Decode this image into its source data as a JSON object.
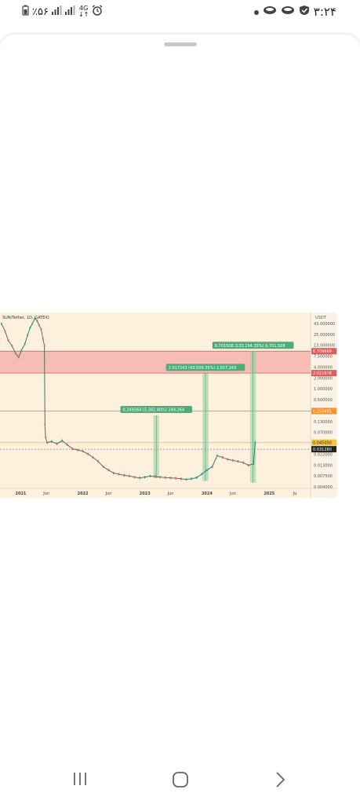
{
  "status_bar": {
    "left_text": "٪۵۶",
    "net": "4G",
    "time": "۳:۲۴",
    "icons": [
      "battery-icon",
      "signal-icon",
      "signal-icon",
      "network-icon",
      "alarm-icon",
      "dot-icon",
      "cloud-icon",
      "cloud-icon",
      "shield-icon"
    ]
  },
  "chart_data": {
    "type": "line",
    "title": "SUN/Tether, 1D, GATEIO",
    "x_ticks": [
      "2021",
      "Jun",
      "2022",
      "Jun",
      "2023",
      "Jun",
      "2024",
      "Jun",
      "2025",
      "Ju"
    ],
    "y_ticks": [
      "43.000000",
      "25.000000",
      "13.000000",
      "7.500000",
      "4.000000",
      "2.000000",
      "1.000000",
      "0.500000",
      "0.250000",
      "0.130000",
      "0.070000",
      "0.040000",
      "0.022000",
      "0.013000",
      "0.007500",
      "0.004000"
    ],
    "y_label_top": "USDT",
    "price_tags": [
      {
        "value": "6.709669",
        "color": "#e05c5c"
      },
      {
        "value": "2.021678",
        "color": "#e05c5c"
      },
      {
        "value": "0.253495",
        "color": "#f0922f"
      },
      {
        "value": "0.045050",
        "color": "#f4c542"
      },
      {
        "value": "0.031280",
        "color": "#222222"
      }
    ],
    "measure_labels": [
      "0.249264 (5,382.40%) 249,264",
      "2.017243 (43,509.35%) 2,017,243",
      "6.701508 (133,194.35%) 6,701,508"
    ],
    "series": [
      {
        "x": [
          "2020-09-10",
          "2020-10-01",
          "2020-10-20",
          "2020-11-10",
          "2020-12-01",
          "2020-12-20",
          "2021-01-05",
          "2021-01-25",
          "2021-02-10",
          "2021-02-25",
          "2021-03-10",
          "2021-03-25",
          "2021-04-08",
          "2021-04-18",
          "2021-05-01",
          "2021-05-12",
          "2021-05-20",
          "2021-05-23",
          "2021-05-27",
          "2021-06-05",
          "2021-07-01",
          "2021-08-01",
          "2021-09-01",
          "2021-10-01",
          "2021-11-01",
          "2021-12-01",
          "2022-01-01",
          "2022-02-01",
          "2022-03-01",
          "2022-04-01",
          "2022-05-01",
          "2022-06-01",
          "2022-07-01",
          "2022-08-01",
          "2022-09-01",
          "2022-10-01",
          "2022-11-01",
          "2022-12-01",
          "2023-01-01",
          "2023-02-01",
          "2023-03-01",
          "2023-04-01",
          "2023-05-01",
          "2023-06-01",
          "2023-07-01",
          "2023-08-01",
          "2023-09-01",
          "2023-10-01",
          "2023-11-01",
          "2023-12-01",
          "2024-01-01",
          "2024-02-01",
          "2024-03-01",
          "2024-04-01",
          "2024-05-01",
          "2024-06-01",
          "2024-07-01",
          "2024-08-01",
          "2024-09-01",
          "2024-10-01",
          "2024-10-10"
        ],
        "y": [
          30,
          20,
          12,
          9,
          6,
          4.8,
          7,
          10,
          16,
          24,
          30,
          40,
          35,
          28,
          22,
          13,
          9,
          0.12,
          0.06,
          0.045,
          0.048,
          0.042,
          0.05,
          0.04,
          0.032,
          0.03,
          0.028,
          0.024,
          0.02,
          0.016,
          0.012,
          0.01,
          0.0085,
          0.008,
          0.0075,
          0.0072,
          0.0068,
          0.0065,
          0.0068,
          0.0072,
          0.007,
          0.0068,
          0.0066,
          0.0065,
          0.0064,
          0.0062,
          0.006,
          0.0062,
          0.0066,
          0.008,
          0.01,
          0.012,
          0.022,
          0.02,
          0.018,
          0.017,
          0.016,
          0.015,
          0.013,
          0.014,
          0.045
        ]
      }
    ],
    "ylim": [
      0.004,
      43
    ],
    "log_scale": true,
    "grid": false,
    "zones": [
      {
        "from": 2.021678,
        "to": 6.709669,
        "color": "#f6b4ae"
      }
    ],
    "lines": [
      {
        "value": 0.253495,
        "color": "#f0922f"
      },
      {
        "value": 0.04505,
        "color": "#f4c542"
      },
      {
        "value": 0.03128,
        "color": "#999999"
      }
    ],
    "measures": [
      {
        "x_from": "2023-02-20",
        "x_to": "2023-03-25",
        "y_from": 0.0065,
        "y_to": 0.2
      },
      {
        "x_from": "2023-12-05",
        "x_to": "2024-01-10",
        "y_from": 0.0055,
        "y_to": 2.0
      },
      {
        "x_from": "2024-09-10",
        "x_to": "2024-10-15",
        "y_from": 0.005,
        "y_to": 6.7
      }
    ]
  }
}
